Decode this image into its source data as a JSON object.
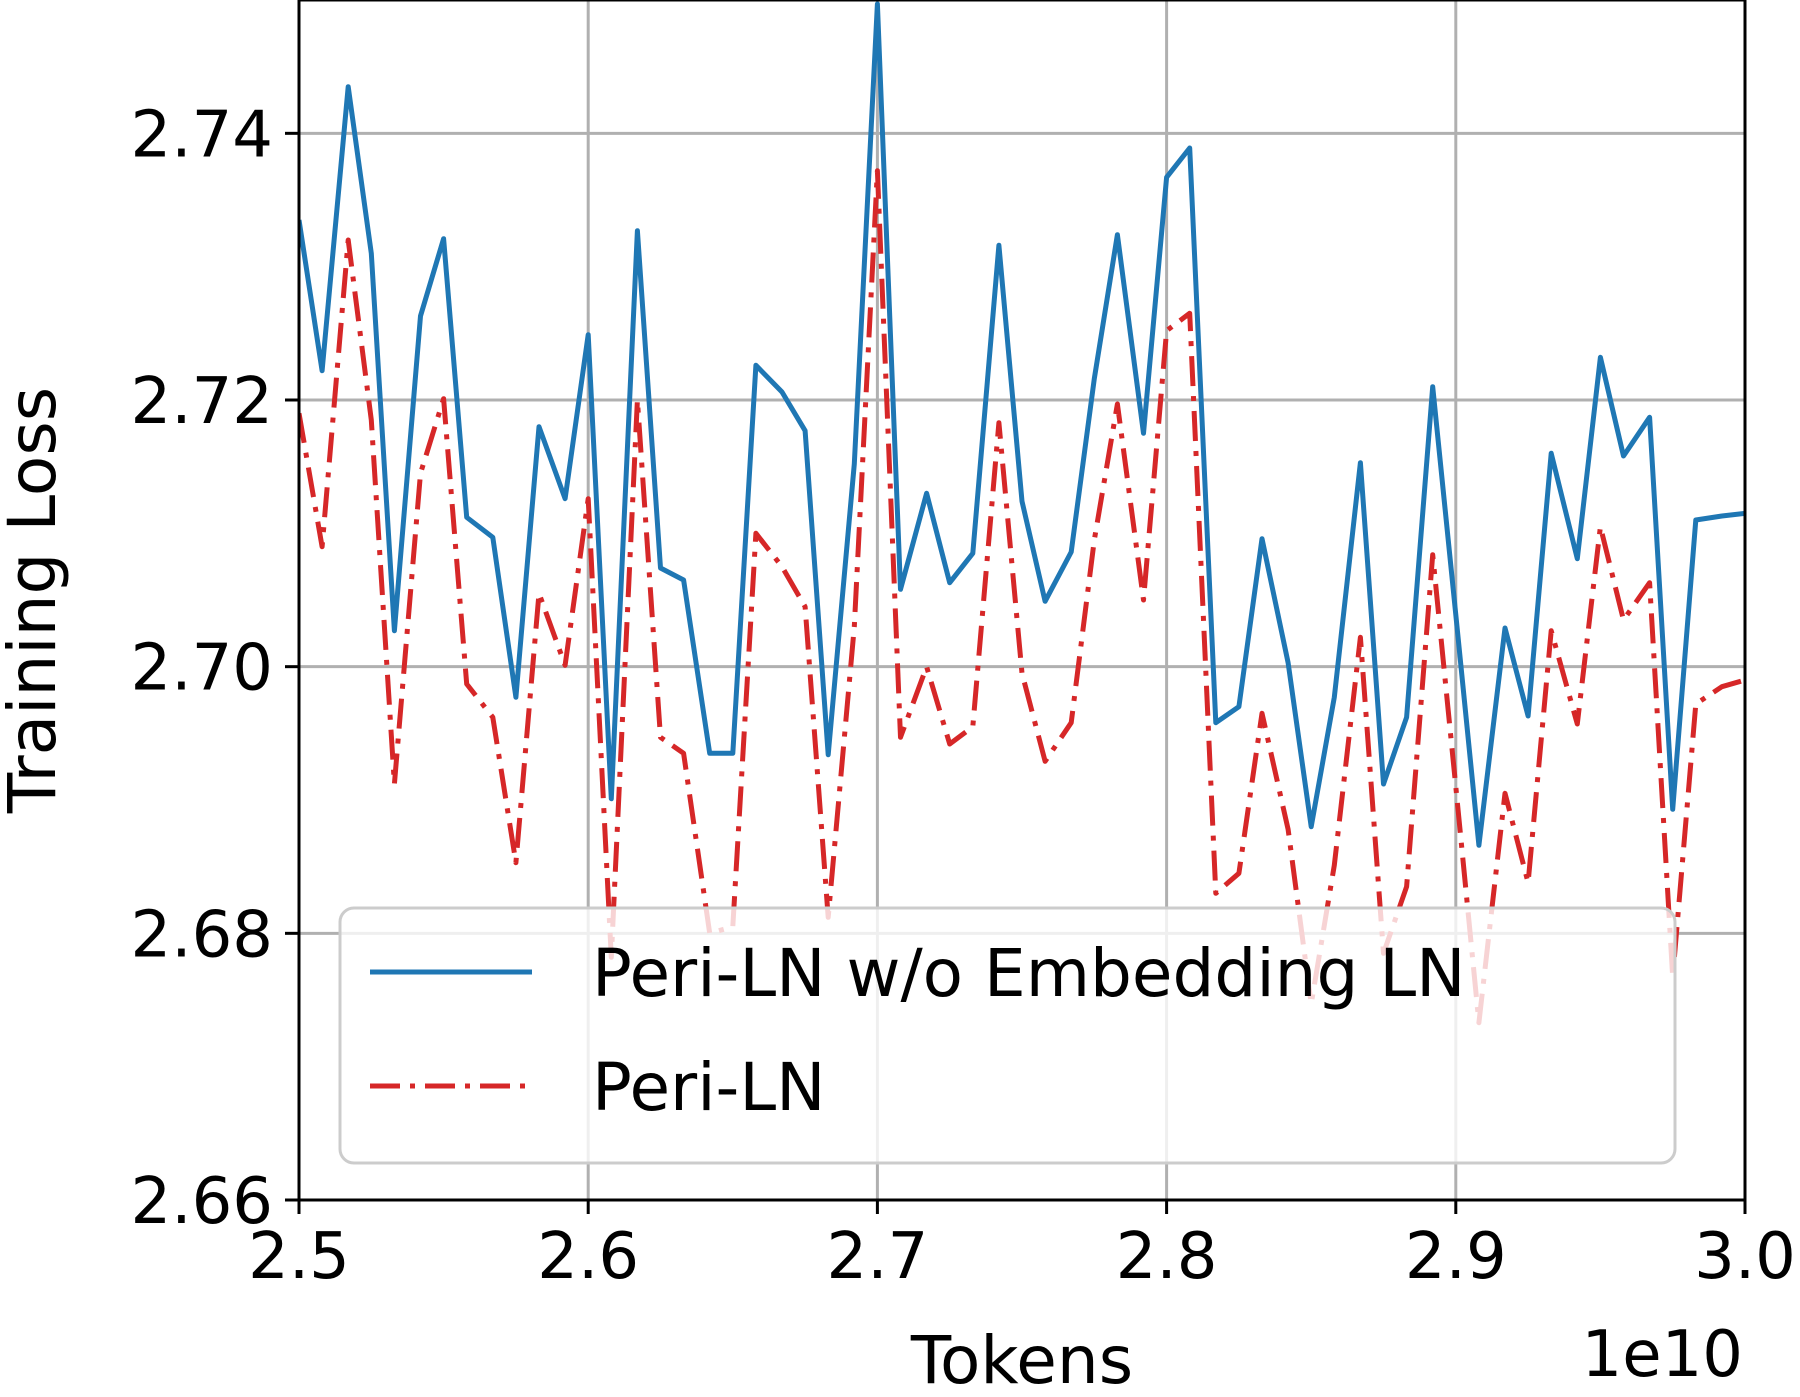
{
  "chart_data": {
    "type": "line",
    "xlabel": "Tokens",
    "ylabel": "Training Loss",
    "x_offset_label": "1e10",
    "x_scale": 10000000000,
    "xlim": [
      2.5,
      3.0
    ],
    "ylim": [
      2.66,
      2.75
    ],
    "x_ticks": [
      2.5,
      2.6,
      2.7,
      2.8,
      2.9,
      3.0
    ],
    "x_tick_labels": [
      "2.5",
      "2.6",
      "2.7",
      "2.8",
      "2.9",
      "3.0"
    ],
    "y_ticks": [
      2.66,
      2.68,
      2.7,
      2.72,
      2.74
    ],
    "y_tick_labels": [
      "2.66",
      "2.68",
      "2.70",
      "2.72",
      "2.74"
    ],
    "grid": true,
    "legend_position": "lower-right",
    "x": [
      2.5,
      2.508,
      2.517,
      2.525,
      2.533,
      2.542,
      2.55,
      2.558,
      2.567,
      2.575,
      2.583,
      2.592,
      2.6,
      2.608,
      2.617,
      2.625,
      2.633,
      2.642,
      2.65,
      2.658,
      2.667,
      2.675,
      2.683,
      2.692,
      2.7,
      2.708,
      2.717,
      2.725,
      2.733,
      2.742,
      2.75,
      2.758,
      2.767,
      2.775,
      2.783,
      2.792,
      2.8,
      2.808,
      2.817,
      2.825,
      2.833,
      2.842,
      2.85,
      2.858,
      2.867,
      2.875,
      2.883,
      2.892,
      2.9,
      2.908,
      2.917,
      2.925,
      2.933,
      2.942,
      2.95,
      2.958,
      2.967,
      2.975,
      2.983,
      2.992,
      3.0
    ],
    "series": [
      {
        "name": "Peri-LN w/o Embedding LN",
        "color": "#1f77b4",
        "style": "solid",
        "values": [
          2.7335,
          2.7222,
          2.7435,
          2.731,
          2.7027,
          2.7263,
          2.7321,
          2.7112,
          2.7097,
          2.6977,
          2.718,
          2.7126,
          2.7249,
          2.6901,
          2.7327,
          2.7074,
          2.7065,
          2.6935,
          2.6935,
          2.7226,
          2.7206,
          2.7177,
          2.6934,
          2.7152,
          2.7497,
          2.7058,
          2.713,
          2.7063,
          2.7085,
          2.7316,
          2.7124,
          2.7049,
          2.7086,
          2.7216,
          2.7324,
          2.7175,
          2.7367,
          2.7389,
          2.6958,
          2.697,
          2.7096,
          2.7003,
          2.688,
          2.6977,
          2.7153,
          2.6912,
          2.6962,
          2.721,
          2.7039,
          2.6866,
          2.7029,
          2.6963,
          2.716,
          2.7081,
          2.7232,
          2.7158,
          2.7187,
          2.6893,
          2.711,
          2.7113,
          2.7115
        ]
      },
      {
        "name": "Peri-LN",
        "color": "#d62728",
        "style": "dashdot",
        "values": [
          2.719,
          2.709,
          2.732,
          2.7185,
          2.6912,
          2.7145,
          2.7201,
          2.6987,
          2.6962,
          2.6853,
          2.7055,
          2.7001,
          2.7126,
          2.6782,
          2.72,
          2.6947,
          2.6935,
          2.68,
          2.6805,
          2.71,
          2.7075,
          2.7045,
          2.6812,
          2.703,
          2.7372,
          2.6947,
          2.7,
          2.6942,
          2.6955,
          2.7183,
          2.6995,
          2.6929,
          2.6958,
          2.7095,
          2.7197,
          2.705,
          2.7252,
          2.7265,
          2.683,
          2.6845,
          2.6965,
          2.6878,
          2.6747,
          2.6851,
          2.7022,
          2.6785,
          2.6835,
          2.7084,
          2.691,
          2.6733,
          2.6905,
          2.6838,
          2.7027,
          2.6957,
          2.7105,
          2.7035,
          2.7063,
          2.6767,
          2.6972,
          2.6985,
          2.699
        ]
      }
    ]
  }
}
